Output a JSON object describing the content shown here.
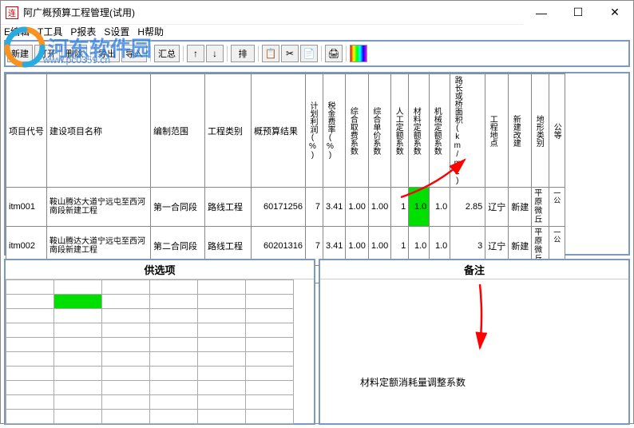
{
  "window": {
    "title": "阿广概预算工程管理(试用)",
    "icon_label": "连"
  },
  "menu": {
    "edit": "E编辑",
    "tool": "T工具",
    "report": "P报表",
    "setting": "S设置",
    "help": "H帮助"
  },
  "toolbar": {
    "new": "新建",
    "open": "打开",
    "delete": "删除",
    "export": "导出",
    "import": "导入",
    "summary": "汇总",
    "up": "↑",
    "down": "↓",
    "sort": "排",
    "copy": "📋",
    "cut": "✂",
    "paste": "📄",
    "print": "🖨",
    "color": "▬"
  },
  "grid": {
    "headers": {
      "code": "项目代号",
      "name": "建设项目名称",
      "scope": "编制范围",
      "type": "工程类别",
      "result": "概预算结果",
      "plan_rate": "计划利润(%)",
      "tax_rate": "税金费率(%)",
      "comp_take": "综合取费系数",
      "comp_unit": "综合单价系数",
      "labor": "人工定额系数",
      "material": "材料定额系数",
      "machine": "机械定额系数",
      "road_len": "路长或桥面积(km/m2)",
      "site": "工程地点",
      "build_rebuild": "新建改建",
      "terrain": "地形类别",
      "road_grade": "公等"
    },
    "rows": [
      {
        "code": "itm001",
        "name": "鞍山腾达大道宁远屯至西河南段新建工程",
        "scope": "第一合同段",
        "type": "路线工程",
        "result": "60171256",
        "plan_rate": "7",
        "tax_rate": "3.41",
        "comp_take": "1.00",
        "comp_unit": "1.00",
        "labor": "1",
        "material": "1.0",
        "machine": "1.0",
        "road_len": "2.85",
        "site": "辽宁",
        "build_rebuild": "新建",
        "terrain": "平原微丘",
        "road_grade": "一公"
      },
      {
        "code": "itm002",
        "name": "鞍山腾达大道宁远屯至西河南段新建工程",
        "scope": "第二合同段",
        "type": "路线工程",
        "result": "60201316",
        "plan_rate": "7",
        "tax_rate": "3.41",
        "comp_take": "1.00",
        "comp_unit": "1.00",
        "labor": "1",
        "material": "1.0",
        "machine": "1.0",
        "road_len": "3",
        "site": "辽宁",
        "build_rebuild": "新建",
        "terrain": "平原微丘",
        "road_grade": "一公"
      }
    ],
    "highlight": {
      "row": 0,
      "col": "material",
      "color": "#00e000"
    }
  },
  "left_panel": {
    "title": "供选项",
    "grid_rows": 10,
    "grid_cols": 6,
    "highlight": {
      "row": 1,
      "col": 1,
      "color": "#00e000"
    }
  },
  "right_panel": {
    "title": "备注",
    "note": "材料定额消耗量调整系数"
  },
  "watermark": {
    "text": "河东软件园",
    "url": "www.pc0359.cn"
  },
  "arrows": {
    "arrow1": {
      "color": "#ff0000"
    },
    "arrow2": {
      "color": "#ff0000"
    }
  },
  "colors": {
    "border": "#7a9ac0",
    "highlight": "#00e000",
    "filler": "#808080"
  }
}
